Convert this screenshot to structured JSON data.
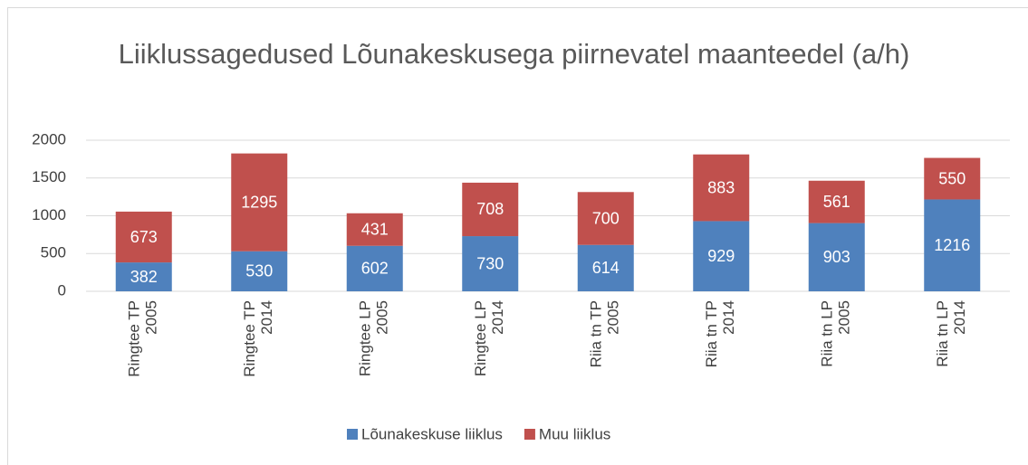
{
  "chart_data": {
    "type": "stacked_bar",
    "title": "Liiklussagedused Lõunakeskusega piirnevatel maanteedel (a/h)",
    "categories": [
      [
        "Ringtee TP",
        "2005"
      ],
      [
        "Ringtee TP",
        "2014"
      ],
      [
        "Ringtee LP",
        "2005"
      ],
      [
        "Ringtee LP",
        "2014"
      ],
      [
        "Riia tn TP",
        "2005"
      ],
      [
        "Riia tn TP",
        "2014"
      ],
      [
        "Riia tn LP",
        "2005"
      ],
      [
        "Riia tn LP",
        "2014"
      ]
    ],
    "series": [
      {
        "name": "Lõunakeskuse liiklus",
        "color": "#4f81bd",
        "values": [
          382,
          530,
          602,
          730,
          614,
          929,
          903,
          1216
        ]
      },
      {
        "name": "Muu liiklus",
        "color": "#c0504d",
        "values": [
          673,
          1295,
          431,
          708,
          700,
          883,
          561,
          550
        ]
      }
    ],
    "ylim": [
      0,
      2000
    ],
    "yticks": [
      0,
      500,
      1000,
      1500,
      2000
    ],
    "grid": true,
    "legend": "bottom"
  }
}
